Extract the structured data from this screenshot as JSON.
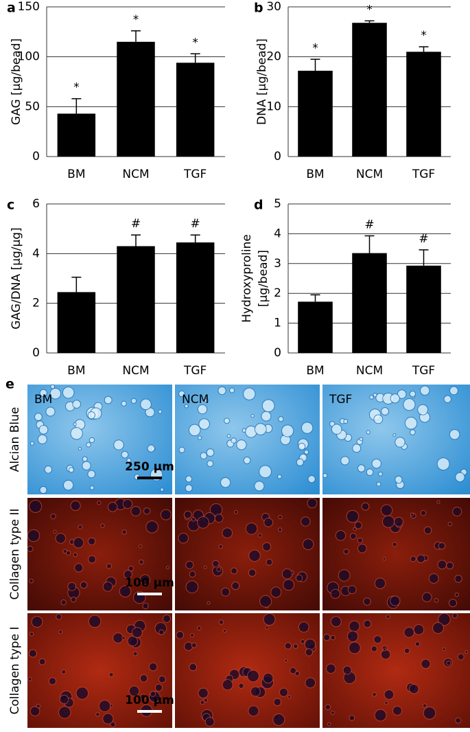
{
  "chart_data": [
    {
      "type": "bar",
      "panel_label": "a",
      "ylabel": "GAG [µg/bead]",
      "categories": [
        "BM",
        "NCM",
        "TGF"
      ],
      "values": [
        43,
        115,
        94
      ],
      "errors": [
        15,
        11,
        9
      ],
      "annotations": [
        "*",
        "*",
        "*"
      ],
      "color": "#000000",
      "ylim": [
        0,
        150
      ],
      "yticks": [
        0,
        50,
        100,
        150
      ],
      "grid": true
    },
    {
      "type": "bar",
      "panel_label": "b",
      "ylabel": "DNA [µg/bead]",
      "categories": [
        "BM",
        "NCM",
        "TGF"
      ],
      "values": [
        17.2,
        26.8,
        21
      ],
      "errors": [
        2.3,
        0.4,
        1
      ],
      "annotations": [
        "*",
        "*",
        "*"
      ],
      "color": "#000000",
      "ylim": [
        0,
        30
      ],
      "yticks": [
        0,
        10,
        20,
        30
      ],
      "grid": true
    },
    {
      "type": "bar",
      "panel_label": "c",
      "ylabel": "GAG/DNA [µg/µg]",
      "categories": [
        "BM",
        "NCM",
        "TGF"
      ],
      "values": [
        2.45,
        4.3,
        4.45
      ],
      "errors": [
        0.6,
        0.45,
        0.3
      ],
      "annotations": [
        null,
        "#",
        "#"
      ],
      "color": "#000000",
      "ylim": [
        0,
        6
      ],
      "yticks": [
        0,
        2,
        4,
        6
      ],
      "grid": true
    },
    {
      "type": "bar",
      "panel_label": "d",
      "ylabel": [
        "Hydroxyproline",
        "[µg/bead]"
      ],
      "categories": [
        "BM",
        "NCM",
        "TGF"
      ],
      "values": [
        1.72,
        3.35,
        2.93
      ],
      "errors": [
        0.23,
        0.58,
        0.53
      ],
      "annotations": [
        null,
        "#",
        "#"
      ],
      "color": "#000000",
      "ylim": [
        0,
        5
      ],
      "yticks": [
        0,
        1,
        2,
        3,
        4,
        5
      ],
      "grid": true
    }
  ],
  "panel_e": {
    "label": "e",
    "columns": [
      "BM",
      "NCM",
      "TGF"
    ],
    "rows": [
      "Alcian Blue",
      "Collagen type II",
      "Collagen type I"
    ],
    "scale_bars": [
      "250 µm",
      "100 µm",
      "100 µm"
    ]
  }
}
